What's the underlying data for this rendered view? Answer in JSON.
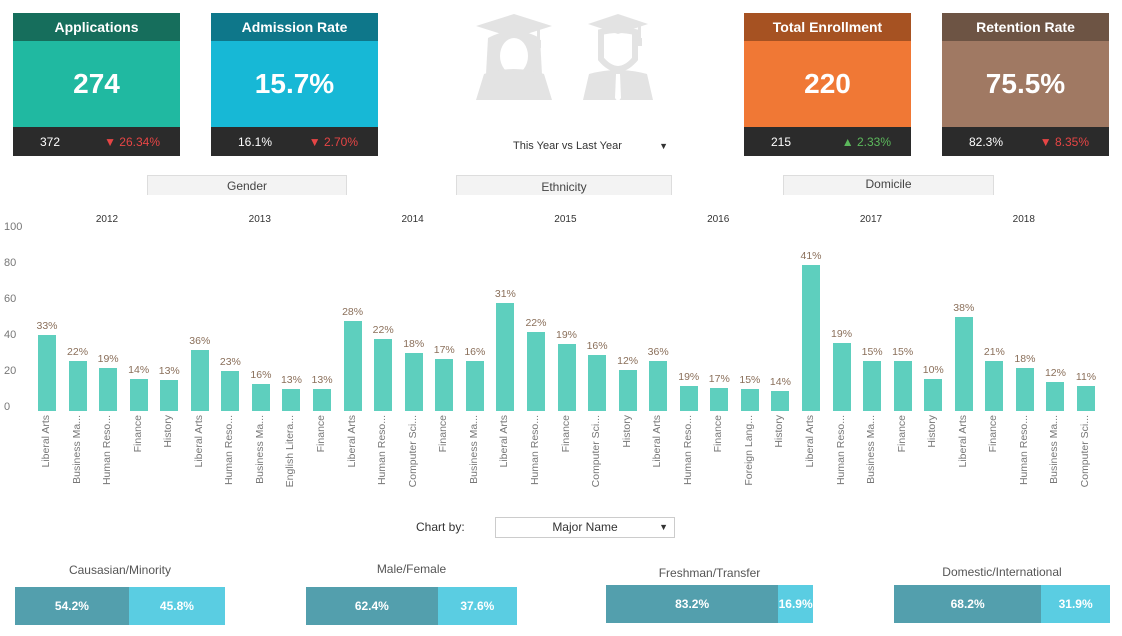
{
  "kpis": [
    {
      "title": "Applications",
      "value": "274",
      "previous": "372",
      "change": "26.34%",
      "direction": "down",
      "header_color": "#166e5c",
      "body_color": "#20b9a1"
    },
    {
      "title": "Admission Rate",
      "value": "15.7%",
      "previous": "16.1%",
      "change": "2.70%",
      "direction": "down",
      "header_color": "#0e778a",
      "body_color": "#17b8d6"
    },
    {
      "title": "Total Enrollment",
      "value": "220",
      "previous": "215",
      "change": "2.33%",
      "direction": "up",
      "header_color": "#a65222",
      "body_color": "#f07835"
    },
    {
      "title": "Retention Rate",
      "value": "75.5%",
      "previous": "82.3%",
      "change": "8.35%",
      "direction": "down",
      "header_color": "#6d5444",
      "body_color": "#a07963"
    }
  ],
  "compare_select": {
    "value": "This Year vs Last Year"
  },
  "filters": [
    "Gender",
    "Ethnicity",
    "Domicile"
  ],
  "chart_data": {
    "type": "bar",
    "x_groups": [
      "2012",
      "2013",
      "2014",
      "2015",
      "2016",
      "2017",
      "2018"
    ],
    "yticks": [
      100,
      80,
      60,
      40,
      20,
      0
    ],
    "ylim": [
      0,
      100
    ],
    "color": "#5ecfbe",
    "categories": [
      "Liberal Arts",
      "Business Ma...",
      "Human Reso...",
      "Finance",
      "History",
      "Liberal Arts",
      "Human Reso...",
      "Business Ma...",
      "English Litera...",
      "Finance",
      "Liberal Arts",
      "Human Reso...",
      "Computer Sci...",
      "Finance",
      "Business Ma...",
      "Liberal Arts",
      "Human Reso...",
      "Finance",
      "Computer Sci...",
      "History",
      "Liberal Arts",
      "Human Reso...",
      "Finance",
      "Foreign Lang...",
      "History",
      "Liberal Arts",
      "Human Reso...",
      "Business Ma...",
      "Finance",
      "History",
      "Liberal Arts",
      "Finance",
      "Human Reso...",
      "Business Ma...",
      "Computer Sci..."
    ],
    "values": [
      42,
      28,
      24,
      18,
      17,
      34,
      22,
      15,
      12,
      12,
      50,
      40,
      32,
      29,
      28,
      60,
      44,
      37,
      31,
      23,
      28,
      14,
      13,
      12,
      11,
      81,
      38,
      28,
      28,
      18,
      52,
      28,
      24,
      16,
      14
    ],
    "data_labels": [
      "33%",
      "22%",
      "19%",
      "14%",
      "13%",
      "36%",
      "23%",
      "16%",
      "13%",
      "13%",
      "28%",
      "22%",
      "18%",
      "17%",
      "16%",
      "31%",
      "22%",
      "19%",
      "16%",
      "12%",
      "36%",
      "19%",
      "17%",
      "15%",
      "14%",
      "41%",
      "19%",
      "15%",
      "15%",
      "10%",
      "38%",
      "21%",
      "18%",
      "12%",
      "11%"
    ]
  },
  "chart_by": {
    "label": "Chart by:",
    "value": "Major Name"
  },
  "splits": [
    {
      "title": "Causasian/Minority",
      "a": "54.2%",
      "b": "45.8%",
      "a_pct": 54.2
    },
    {
      "title": "Male/Female",
      "a": "62.4%",
      "b": "37.6%",
      "a_pct": 62.4
    },
    {
      "title": "Freshman/Transfer",
      "a": "83.2%",
      "b": "16.9%",
      "a_pct": 83.2
    },
    {
      "title": "Domestic/International",
      "a": "68.2%",
      "b": "31.9%",
      "a_pct": 68.2
    }
  ]
}
